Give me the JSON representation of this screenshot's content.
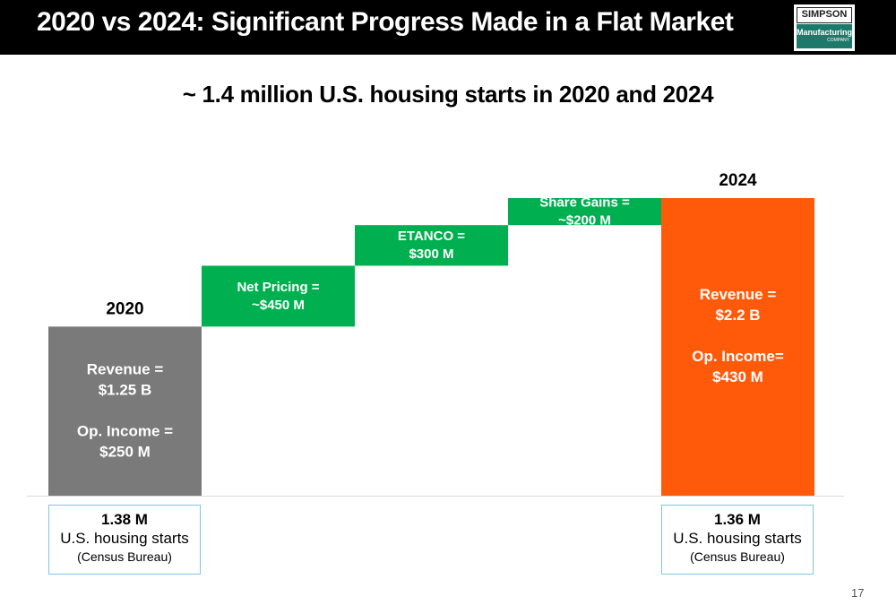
{
  "header": {
    "title": "2020 vs 2024: Significant Progress Made in a Flat Market",
    "logo": {
      "top": "SIMPSON",
      "middle": "Manufacturing",
      "bottom": "COMPANY"
    }
  },
  "subtitle": "~ 1.4 million U.S. housing starts in 2020 and 2024",
  "chart_data": {
    "type": "bar",
    "subtype": "waterfall",
    "unit": "$M revenue",
    "categories": [
      "2020",
      "Net Pricing",
      "ETANCO",
      "Share Gains",
      "2024"
    ],
    "bars": [
      {
        "category": "2020",
        "kind": "total",
        "start": 0,
        "end": 1250,
        "color": "#7a7a7a",
        "title": "2020",
        "lines": [
          "Revenue =",
          "$1.25 B",
          "",
          "Op. Income =",
          "$250 M"
        ]
      },
      {
        "category": "Net Pricing",
        "kind": "delta",
        "start": 1250,
        "end": 1700,
        "color": "#00b050",
        "lines": [
          "Net Pricing =",
          "~$450 M"
        ]
      },
      {
        "category": "ETANCO",
        "kind": "delta",
        "start": 1700,
        "end": 2000,
        "color": "#00b050",
        "lines": [
          "ETANCO =",
          "$300 M"
        ]
      },
      {
        "category": "Share Gains",
        "kind": "delta",
        "start": 2000,
        "end": 2200,
        "color": "#00b050",
        "lines": [
          "Share Gains =",
          "~$200 M"
        ]
      },
      {
        "category": "2024",
        "kind": "total",
        "start": 0,
        "end": 2200,
        "color": "#ff5a0a",
        "title": "2024",
        "lines": [
          "Revenue =",
          "$2.2 B",
          "",
          "Op. Income=",
          "$430 M"
        ]
      }
    ],
    "ylim": [
      0,
      2200
    ],
    "grid": false,
    "legend": "none"
  },
  "housing_starts": {
    "left": {
      "value": "1.38 M",
      "label": "U.S. housing starts",
      "source": "(Census Bureau)"
    },
    "right": {
      "value": "1.36 M",
      "label": "U.S. housing starts",
      "source": "(Census Bureau)"
    }
  },
  "page_number": "17"
}
